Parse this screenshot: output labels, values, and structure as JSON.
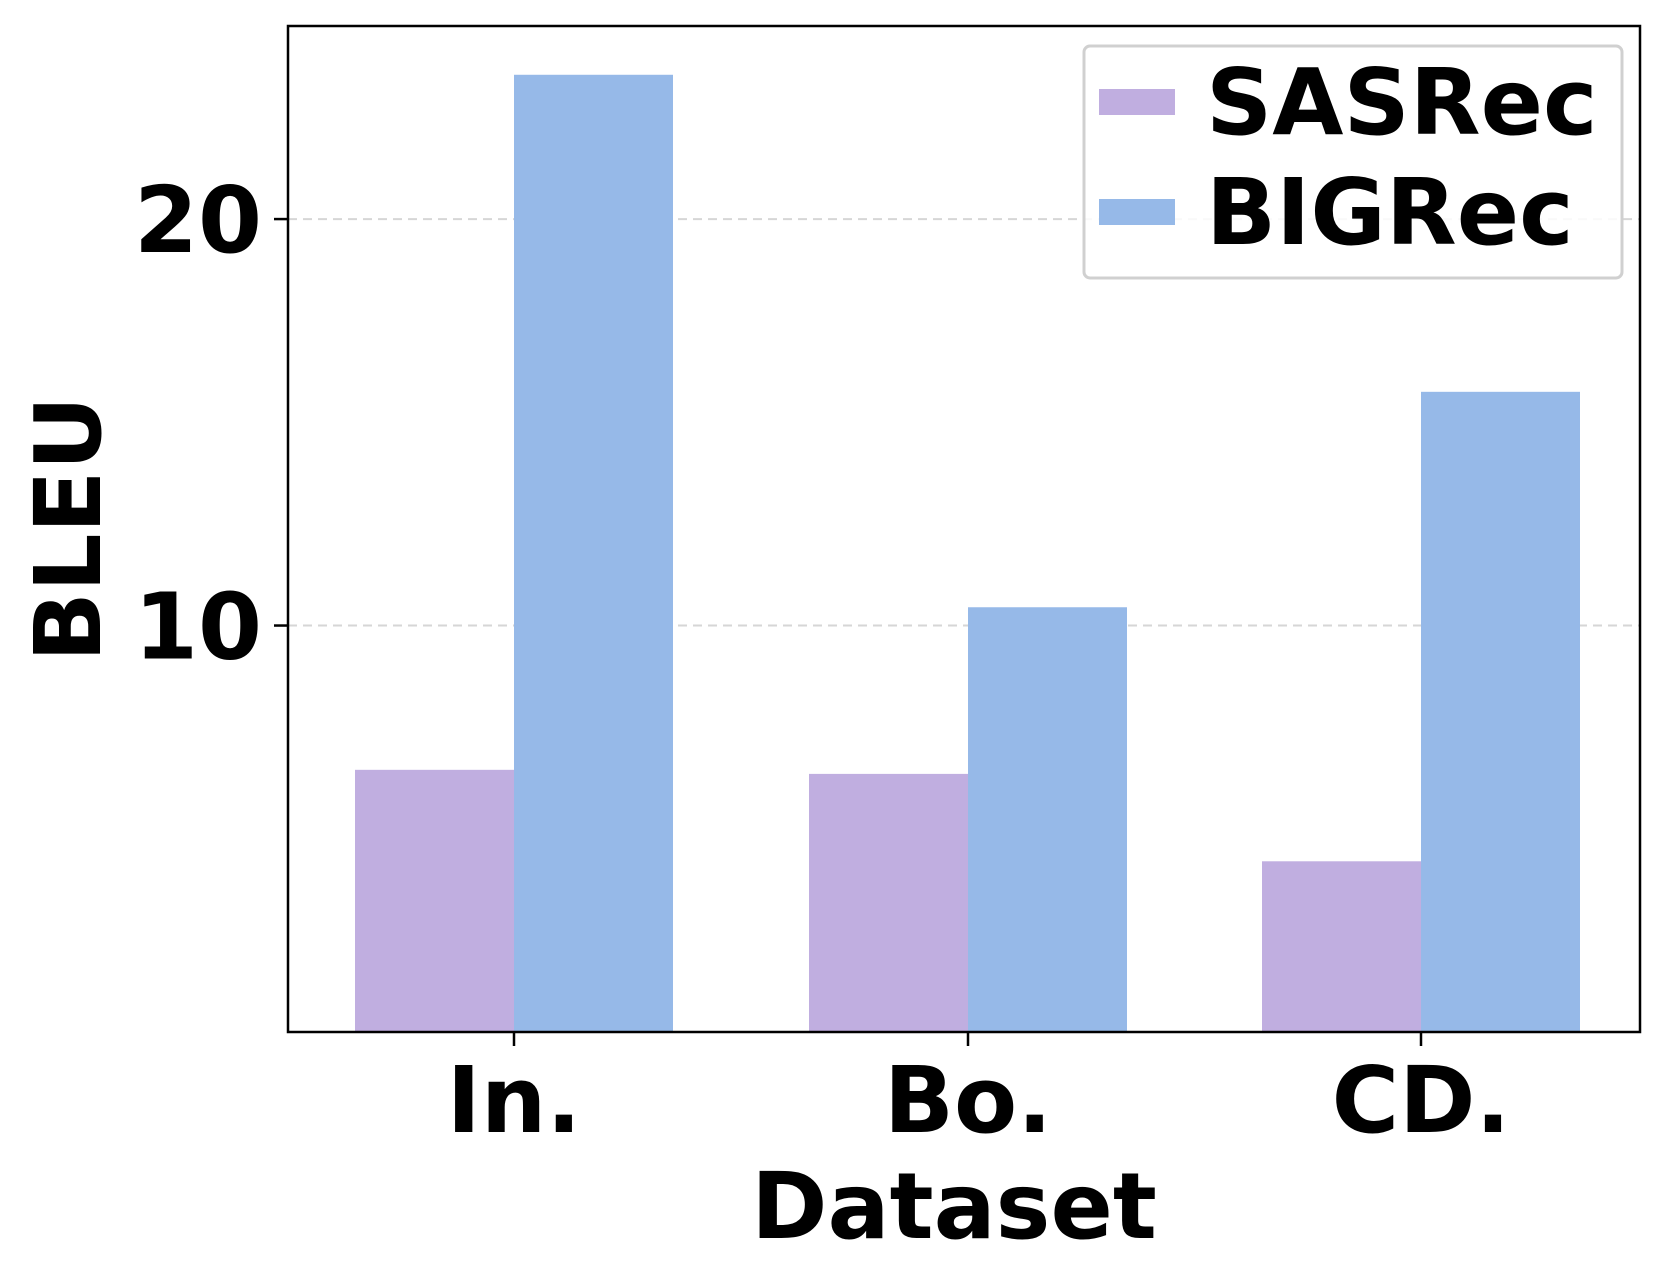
{
  "chart_data": {
    "type": "bar",
    "categories": [
      "In.",
      "Bo.",
      "CD."
    ],
    "series": [
      {
        "name": "SASRec",
        "values": [
          6.45,
          6.35,
          4.2
        ],
        "color": "#c0aee0"
      },
      {
        "name": "BIGRec",
        "values": [
          23.55,
          10.45,
          15.75
        ],
        "color": "#96b9e8"
      }
    ],
    "xlabel": "Dataset",
    "ylabel": "BLEU",
    "ylim": [
      0,
      24.75
    ],
    "yticks": [
      10,
      20
    ],
    "ytick_labels": [
      "10",
      "20"
    ],
    "grid": "y-dashed",
    "legend_position": "top-right"
  }
}
